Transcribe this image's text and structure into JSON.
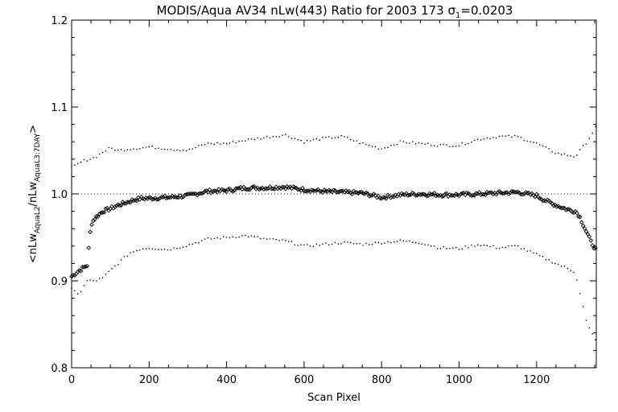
{
  "chart_data": {
    "type": "scatter",
    "title": "MODIS/Aqua AV34 nLw(443) Ratio for 2003 173 σ₁=0.0203",
    "xlabel": "Scan Pixel",
    "ylabel": "<nLw_AquaL2/nLw_AquaL3:7DAY>",
    "xlim": [
      0,
      1354
    ],
    "ylim": [
      0.8,
      1.2
    ],
    "x_ticks": [
      0,
      200,
      400,
      600,
      800,
      1000,
      1200
    ],
    "x_tick_labels": [
      "0",
      "200",
      "400",
      "600",
      "800",
      "1000",
      "1200"
    ],
    "y_ticks": [
      0.8,
      0.9,
      1.0,
      1.1,
      1.2
    ],
    "y_tick_labels": [
      "0.8",
      "0.9",
      "1.0",
      "1.1",
      "1.2"
    ],
    "reference_line": 1.0,
    "grid": false,
    "series": [
      {
        "role": "mean ratio",
        "marker": "diamond",
        "x": [
          0,
          20,
          40,
          50,
          60,
          80,
          100,
          120,
          140,
          160,
          180,
          200,
          250,
          300,
          350,
          400,
          450,
          500,
          550,
          600,
          650,
          700,
          750,
          800,
          850,
          900,
          950,
          1000,
          1050,
          1100,
          1150,
          1200,
          1220,
          1250,
          1280,
          1300,
          1310,
          1320,
          1330,
          1340,
          1354
        ],
        "y": [
          0.905,
          0.912,
          0.918,
          0.965,
          0.972,
          0.98,
          0.983,
          0.987,
          0.99,
          0.993,
          0.995,
          0.995,
          0.996,
          0.998,
          1.003,
          1.004,
          1.007,
          1.007,
          1.008,
          1.005,
          1.003,
          1.002,
          1.001,
          0.996,
          0.999,
          1.0,
          0.999,
          0.999,
          1.0,
          1.001,
          1.002,
          0.998,
          0.993,
          0.987,
          0.982,
          0.98,
          0.975,
          0.965,
          0.955,
          0.945,
          0.935
        ]
      },
      {
        "role": "upper bound",
        "marker": "dot",
        "x": [
          0,
          30,
          60,
          80,
          100,
          120,
          150,
          180,
          200,
          250,
          300,
          350,
          400,
          450,
          500,
          550,
          600,
          650,
          700,
          750,
          800,
          850,
          900,
          950,
          1000,
          1050,
          1100,
          1150,
          1200,
          1250,
          1300,
          1330,
          1354
        ],
        "y": [
          1.03,
          1.038,
          1.042,
          1.048,
          1.053,
          1.05,
          1.052,
          1.053,
          1.054,
          1.052,
          1.05,
          1.058,
          1.058,
          1.062,
          1.065,
          1.068,
          1.06,
          1.064,
          1.066,
          1.058,
          1.052,
          1.06,
          1.058,
          1.056,
          1.056,
          1.063,
          1.066,
          1.066,
          1.058,
          1.047,
          1.043,
          1.06,
          1.078
        ]
      },
      {
        "role": "lower bound",
        "marker": "dot",
        "x": [
          0,
          20,
          40,
          60,
          80,
          100,
          120,
          150,
          180,
          200,
          250,
          300,
          350,
          400,
          450,
          500,
          550,
          600,
          650,
          700,
          750,
          800,
          850,
          900,
          950,
          1000,
          1050,
          1100,
          1150,
          1200,
          1250,
          1300,
          1330,
          1354
        ],
        "y": [
          0.89,
          0.885,
          0.9,
          0.9,
          0.903,
          0.912,
          0.92,
          0.932,
          0.937,
          0.938,
          0.936,
          0.941,
          0.948,
          0.95,
          0.952,
          0.948,
          0.946,
          0.94,
          0.942,
          0.944,
          0.942,
          0.944,
          0.946,
          0.944,
          0.938,
          0.937,
          0.942,
          0.938,
          0.94,
          0.93,
          0.92,
          0.91,
          0.85,
          0.83
        ]
      }
    ]
  }
}
